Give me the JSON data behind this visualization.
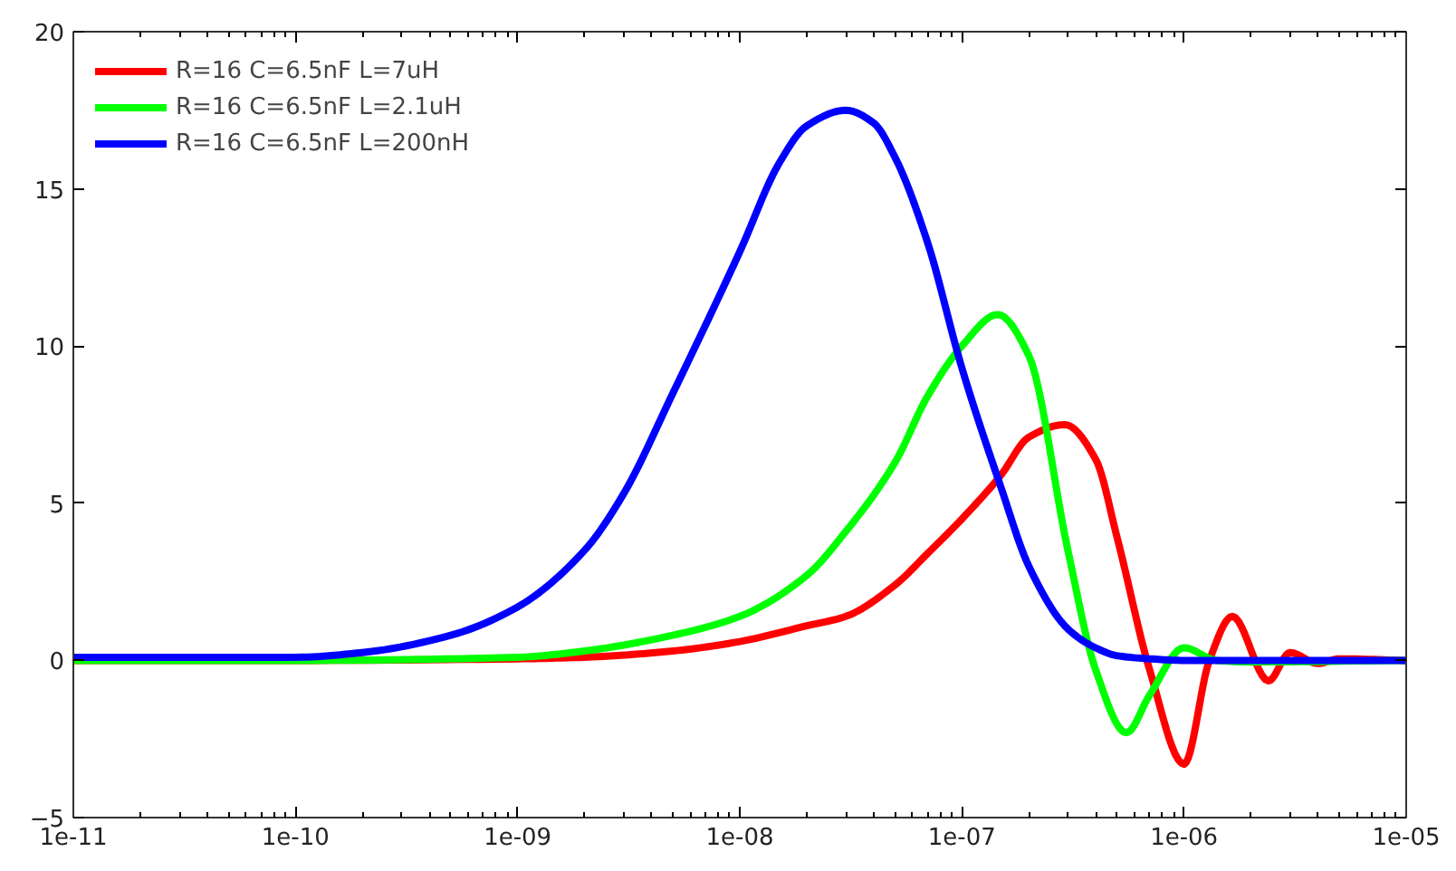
{
  "chart_data": {
    "type": "line",
    "log": "x",
    "xlim": [
      1e-11,
      1e-05
    ],
    "ylim": [
      -5,
      20
    ],
    "xticks": [
      {
        "value": 1e-11,
        "label": "1e-11"
      },
      {
        "value": 1e-10,
        "label": "1e-10"
      },
      {
        "value": 1e-09,
        "label": "1e-09"
      },
      {
        "value": 1e-08,
        "label": "1e-08"
      },
      {
        "value": 1e-07,
        "label": "1e-07"
      },
      {
        "value": 1e-06,
        "label": "1e-06"
      },
      {
        "value": 1e-05,
        "label": "1e-05"
      }
    ],
    "yticks": [
      -5,
      0,
      5,
      10,
      15,
      20
    ],
    "grid": false,
    "legend": "top left",
    "marker": "none",
    "line_style": "solid",
    "series": [
      {
        "name": "R=16 C=6.5nF L=7uH",
        "color": "#ff0000",
        "x": [
          1e-11,
          1e-10,
          1e-09,
          2e-09,
          5e-09,
          1e-08,
          2e-08,
          3e-08,
          5e-08,
          7e-08,
          1e-07,
          1.5e-07,
          2e-07,
          2.9e-07,
          4e-07,
          5e-07,
          7e-07,
          1e-06,
          1.3e-06,
          1.65e-06,
          2.4e-06,
          3e-06,
          4e-06,
          5e-06,
          1e-05
        ],
        "values": [
          0,
          0,
          0.05,
          0.1,
          0.3,
          0.6,
          1.1,
          1.4,
          2.4,
          3.4,
          4.5,
          5.9,
          7.1,
          7.5,
          6.4,
          3.9,
          -0.3,
          -3.3,
          0,
          1.4,
          -0.65,
          0.25,
          -0.1,
          0.05,
          0
        ]
      },
      {
        "name": "R=16 C=6.5nF L=2.1uH",
        "color": "#00ff00",
        "x": [
          1e-11,
          1e-10,
          1e-09,
          2e-09,
          5e-09,
          1e-08,
          2e-08,
          3e-08,
          5e-08,
          7e-08,
          1e-07,
          1.45e-07,
          2e-07,
          3e-07,
          4e-07,
          5.5e-07,
          7e-07,
          1e-06,
          1.4e-06,
          2e-06,
          1e-05
        ],
        "values": [
          0,
          0,
          0.1,
          0.3,
          0.8,
          1.4,
          2.7,
          4.1,
          6.3,
          8.4,
          10,
          11,
          9.7,
          3.5,
          -0.3,
          -2.3,
          -1.1,
          0.4,
          0,
          -0.05,
          0
        ]
      },
      {
        "name": "R=16 C=6.5nF L=200nH",
        "color": "#0000ff",
        "x": [
          1e-11,
          1e-10,
          2e-10,
          5e-10,
          1e-09,
          2e-09,
          3e-09,
          5e-09,
          1e-08,
          1.5e-08,
          2e-08,
          3e-08,
          4e-08,
          5e-08,
          7e-08,
          1e-07,
          1.5e-07,
          2e-07,
          3e-07,
          4e-07,
          5e-07,
          7e-07,
          1e-06,
          1e-05
        ],
        "values": [
          0.1,
          0.1,
          0.25,
          0.8,
          1.7,
          3.5,
          5.3,
          8.5,
          13,
          15.8,
          17,
          17.5,
          17.1,
          16,
          13.3,
          9.3,
          5.5,
          3,
          1,
          0.4,
          0.15,
          0.05,
          0,
          0
        ]
      }
    ]
  }
}
